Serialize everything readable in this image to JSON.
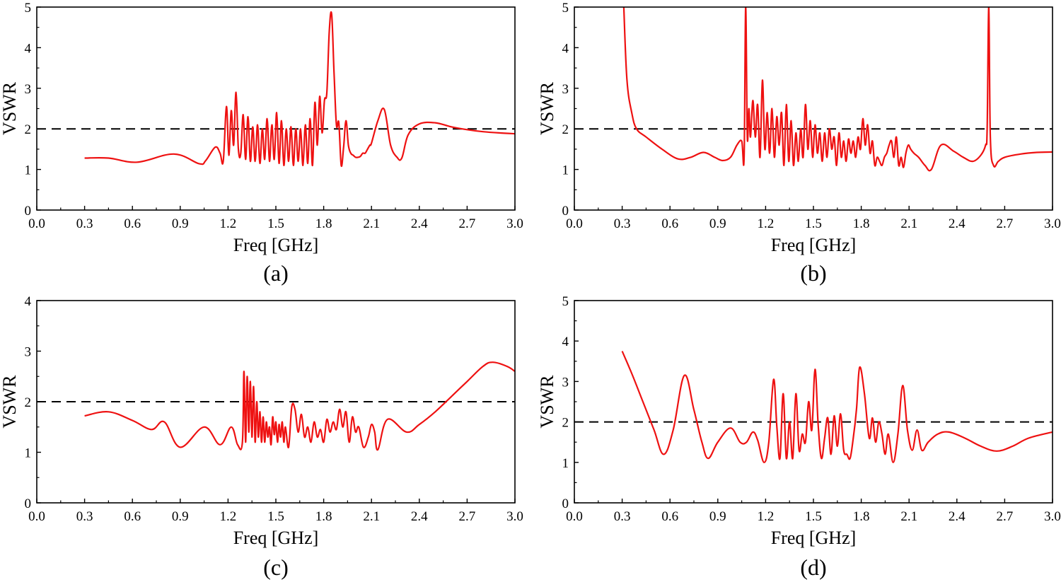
{
  "figure": {
    "panels": [
      "a",
      "b",
      "c",
      "d"
    ]
  },
  "chart_data": [
    {
      "id": "a",
      "caption": "(a)",
      "type": "line",
      "xlabel": "Freq [GHz]",
      "ylabel": "VSWR",
      "xlim": [
        0,
        3
      ],
      "ylim": [
        0,
        5
      ],
      "xticks": [
        "0.0",
        "0.3",
        "0.6",
        "0.9",
        "1.2",
        "1.5",
        "1.8",
        "2.1",
        "2.4",
        "2.7",
        "3.0"
      ],
      "yticks": [
        "0",
        "1",
        "2",
        "3",
        "4",
        "5"
      ],
      "reference_line": 2,
      "series": [
        {
          "name": "VSWR",
          "color": "#ee1111",
          "x": [
            0.3,
            0.45,
            0.63,
            0.86,
            1.02,
            1.06,
            1.12,
            1.15,
            1.17,
            1.19,
            1.205,
            1.22,
            1.235,
            1.25,
            1.265,
            1.28,
            1.295,
            1.31,
            1.325,
            1.34,
            1.355,
            1.37,
            1.385,
            1.4,
            1.415,
            1.43,
            1.445,
            1.46,
            1.475,
            1.49,
            1.505,
            1.52,
            1.535,
            1.55,
            1.565,
            1.58,
            1.595,
            1.61,
            1.625,
            1.64,
            1.655,
            1.67,
            1.685,
            1.7,
            1.715,
            1.73,
            1.745,
            1.76,
            1.775,
            1.79,
            1.805,
            1.82,
            1.835,
            1.85,
            1.865,
            1.88,
            1.895,
            1.91,
            1.925,
            1.94,
            1.955,
            1.97,
            1.985,
            2.0,
            2.015,
            2.03,
            2.045,
            2.06,
            2.075,
            2.09,
            2.1,
            2.14,
            2.18,
            2.22,
            2.26,
            2.29,
            2.33,
            2.4,
            2.5,
            2.6,
            2.7,
            2.8,
            2.9,
            3.0
          ],
          "values": [
            1.28,
            1.28,
            1.18,
            1.38,
            1.14,
            1.22,
            1.55,
            1.4,
            1.2,
            2.55,
            1.35,
            2.45,
            1.6,
            2.9,
            1.5,
            1.4,
            2.35,
            1.25,
            2.3,
            1.2,
            2.05,
            1.2,
            2.1,
            1.15,
            2.0,
            1.25,
            2.25,
            1.2,
            2.1,
            1.25,
            2.4,
            1.15,
            2.2,
            1.1,
            2.0,
            1.2,
            2.05,
            1.1,
            2.0,
            1.2,
            2.0,
            1.1,
            2.1,
            1.15,
            2.25,
            1.1,
            2.65,
            1.6,
            2.8,
            1.9,
            2.7,
            2.9,
            4.4,
            4.82,
            3.4,
            2.1,
            2.15,
            1.1,
            1.55,
            2.2,
            1.6,
            1.4,
            1.35,
            1.3,
            1.3,
            1.32,
            1.4,
            1.4,
            1.5,
            1.6,
            1.65,
            2.2,
            2.48,
            1.6,
            1.3,
            1.28,
            1.85,
            2.12,
            2.15,
            2.05,
            1.98,
            1.93,
            1.9,
            1.88
          ]
        }
      ]
    },
    {
      "id": "b",
      "caption": "(b)",
      "type": "line",
      "xlabel": "Freq [GHz]",
      "ylabel": "VSWR",
      "xlim": [
        0,
        3
      ],
      "ylim": [
        0,
        5
      ],
      "xticks": [
        "0.0",
        "0.3",
        "0.6",
        "0.9",
        "1.2",
        "1.5",
        "1.8",
        "2.1",
        "2.4",
        "2.7",
        "3.0"
      ],
      "yticks": [
        "0",
        "1",
        "2",
        "3",
        "4",
        "5"
      ],
      "reference_line": 2,
      "series": [
        {
          "name": "VSWR",
          "color": "#ee1111",
          "x": [
            0.31,
            0.33,
            0.36,
            0.39,
            0.45,
            0.55,
            0.65,
            0.73,
            0.81,
            0.88,
            0.93,
            0.98,
            1.02,
            1.05,
            1.065,
            1.075,
            1.085,
            1.095,
            1.105,
            1.12,
            1.135,
            1.15,
            1.165,
            1.18,
            1.195,
            1.21,
            1.225,
            1.24,
            1.255,
            1.27,
            1.285,
            1.3,
            1.315,
            1.33,
            1.345,
            1.36,
            1.375,
            1.39,
            1.405,
            1.42,
            1.435,
            1.45,
            1.465,
            1.48,
            1.495,
            1.51,
            1.525,
            1.54,
            1.555,
            1.57,
            1.585,
            1.6,
            1.615,
            1.63,
            1.645,
            1.66,
            1.675,
            1.69,
            1.705,
            1.72,
            1.735,
            1.75,
            1.765,
            1.78,
            1.795,
            1.81,
            1.825,
            1.84,
            1.855,
            1.87,
            1.885,
            1.9,
            1.915,
            1.93,
            1.945,
            1.96,
            1.975,
            1.99,
            2.005,
            2.02,
            2.035,
            2.05,
            2.065,
            2.08,
            2.095,
            2.11,
            2.13,
            2.16,
            2.2,
            2.24,
            2.3,
            2.38,
            2.44,
            2.5,
            2.55,
            2.58,
            2.59,
            2.6,
            2.61,
            2.63,
            2.66,
            2.7,
            2.8,
            2.9,
            3.0
          ],
          "values": [
            5.0,
            3.2,
            2.4,
            2.0,
            1.8,
            1.5,
            1.26,
            1.3,
            1.42,
            1.3,
            1.22,
            1.3,
            1.6,
            1.7,
            1.3,
            5.0,
            1.8,
            2.5,
            1.8,
            2.7,
            1.8,
            2.6,
            1.3,
            3.2,
            1.5,
            2.4,
            1.4,
            2.5,
            1.3,
            2.3,
            1.6,
            2.4,
            1.1,
            2.6,
            1.2,
            2.2,
            1.1,
            1.9,
            1.2,
            2.0,
            1.3,
            2.6,
            1.5,
            2.2,
            1.3,
            2.1,
            1.4,
            1.9,
            1.2,
            1.9,
            1.3,
            2.0,
            1.5,
            1.8,
            1.1,
            1.9,
            1.3,
            1.7,
            1.2,
            1.75,
            1.4,
            1.7,
            1.3,
            1.8,
            1.5,
            2.25,
            1.6,
            2.1,
            1.4,
            1.7,
            1.1,
            1.3,
            1.2,
            1.1,
            1.3,
            1.4,
            1.6,
            1.7,
            1.3,
            1.8,
            1.1,
            1.3,
            1.05,
            1.4,
            1.6,
            1.5,
            1.4,
            1.3,
            1.1,
            1.0,
            1.6,
            1.45,
            1.3,
            1.2,
            1.35,
            1.6,
            2.0,
            5.0,
            1.8,
            1.1,
            1.2,
            1.3,
            1.38,
            1.42,
            1.43
          ]
        }
      ]
    },
    {
      "id": "c",
      "caption": "(c)",
      "type": "line",
      "xlabel": "Freq [GHz]",
      "ylabel": "VSWR",
      "xlim": [
        0,
        3
      ],
      "ylim": [
        0,
        4
      ],
      "xticks": [
        "0.0",
        "0.3",
        "0.6",
        "0.9",
        "1.2",
        "1.5",
        "1.8",
        "2.1",
        "2.4",
        "2.7",
        "3.0"
      ],
      "yticks": [
        "0",
        "1",
        "2",
        "3",
        "4"
      ],
      "reference_line": 2,
      "series": [
        {
          "name": "VSWR",
          "color": "#ee1111",
          "x": [
            0.3,
            0.45,
            0.6,
            0.72,
            0.8,
            0.9,
            1.05,
            1.15,
            1.22,
            1.26,
            1.29,
            1.3,
            1.31,
            1.32,
            1.33,
            1.34,
            1.35,
            1.36,
            1.37,
            1.38,
            1.39,
            1.4,
            1.41,
            1.42,
            1.43,
            1.44,
            1.45,
            1.46,
            1.47,
            1.48,
            1.49,
            1.5,
            1.51,
            1.52,
            1.53,
            1.54,
            1.55,
            1.56,
            1.58,
            1.6,
            1.62,
            1.64,
            1.66,
            1.68,
            1.7,
            1.72,
            1.74,
            1.76,
            1.78,
            1.8,
            1.82,
            1.84,
            1.86,
            1.88,
            1.9,
            1.92,
            1.94,
            1.96,
            1.98,
            2.0,
            2.02,
            2.05,
            2.08,
            2.1,
            2.12,
            2.14,
            2.2,
            2.32,
            2.4,
            2.5,
            2.6,
            2.7,
            2.8,
            2.86,
            2.95,
            3.0
          ],
          "values": [
            1.72,
            1.8,
            1.63,
            1.45,
            1.6,
            1.1,
            1.5,
            1.15,
            1.5,
            1.15,
            1.2,
            2.6,
            1.2,
            2.5,
            1.4,
            2.4,
            1.3,
            2.3,
            1.2,
            2.0,
            1.3,
            1.8,
            1.2,
            1.7,
            1.2,
            1.6,
            1.3,
            1.5,
            1.15,
            1.7,
            1.35,
            1.6,
            1.2,
            1.55,
            1.3,
            1.6,
            1.2,
            1.5,
            1.1,
            1.9,
            1.85,
            1.4,
            1.75,
            1.3,
            1.5,
            1.2,
            1.6,
            1.3,
            1.45,
            1.2,
            1.65,
            1.4,
            1.6,
            1.45,
            1.85,
            1.5,
            1.8,
            1.2,
            1.7,
            1.4,
            1.5,
            1.1,
            1.3,
            1.55,
            1.4,
            1.05,
            1.65,
            1.4,
            1.55,
            1.8,
            2.1,
            2.4,
            2.7,
            2.78,
            2.7,
            2.6
          ]
        }
      ]
    },
    {
      "id": "d",
      "caption": "(d)",
      "type": "line",
      "xlabel": "Freq [GHz]",
      "ylabel": "VSWR",
      "xlim": [
        0,
        3
      ],
      "ylim": [
        0,
        5
      ],
      "xticks": [
        "0.0",
        "0.3",
        "0.6",
        "0.9",
        "1.2",
        "1.5",
        "1.8",
        "2.1",
        "2.4",
        "2.7",
        "3.0"
      ],
      "yticks": [
        "0",
        "1",
        "2",
        "3",
        "4",
        "5"
      ],
      "reference_line": 2,
      "series": [
        {
          "name": "VSWR",
          "color": "#ee1111",
          "x": [
            0.3,
            0.36,
            0.43,
            0.5,
            0.56,
            0.62,
            0.69,
            0.75,
            0.8,
            0.84,
            0.9,
            0.98,
            1.04,
            1.08,
            1.12,
            1.15,
            1.19,
            1.22,
            1.25,
            1.27,
            1.29,
            1.31,
            1.33,
            1.35,
            1.37,
            1.39,
            1.41,
            1.43,
            1.45,
            1.47,
            1.49,
            1.51,
            1.53,
            1.55,
            1.57,
            1.59,
            1.61,
            1.63,
            1.65,
            1.67,
            1.69,
            1.71,
            1.73,
            1.75,
            1.77,
            1.79,
            1.82,
            1.85,
            1.87,
            1.89,
            1.91,
            1.93,
            1.95,
            1.97,
            2.0,
            2.03,
            2.06,
            2.09,
            2.12,
            2.15,
            2.18,
            2.22,
            2.28,
            2.35,
            2.45,
            2.55,
            2.65,
            2.75,
            2.85,
            3.0
          ],
          "values": [
            3.75,
            3.2,
            2.5,
            1.8,
            1.2,
            1.8,
            3.15,
            2.3,
            1.5,
            1.1,
            1.5,
            1.85,
            1.5,
            1.5,
            1.75,
            1.55,
            1.0,
            1.5,
            3.05,
            1.9,
            1.1,
            2.7,
            1.1,
            2.0,
            1.1,
            2.7,
            1.3,
            1.7,
            1.5,
            2.5,
            1.8,
            3.3,
            1.9,
            1.1,
            1.6,
            2.1,
            1.2,
            2.15,
            1.4,
            2.2,
            1.3,
            1.2,
            1.1,
            1.6,
            2.3,
            3.35,
            2.7,
            1.6,
            2.1,
            1.5,
            2.0,
            1.7,
            1.2,
            1.7,
            1.0,
            1.7,
            2.9,
            1.8,
            1.3,
            1.8,
            1.3,
            1.5,
            1.7,
            1.75,
            1.6,
            1.4,
            1.28,
            1.4,
            1.6,
            1.75
          ]
        }
      ]
    }
  ]
}
